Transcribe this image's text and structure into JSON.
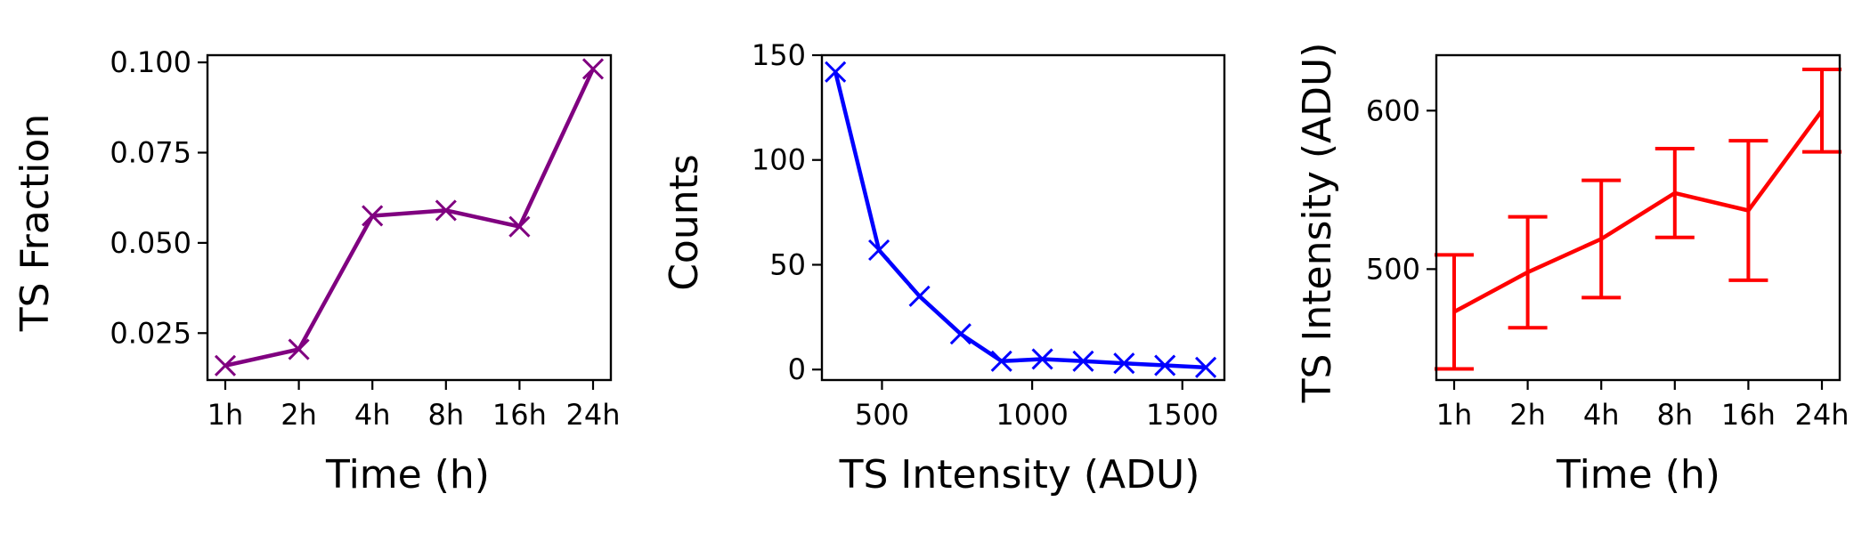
{
  "chart_data": [
    {
      "type": "line",
      "categories": [
        "1h",
        "2h",
        "4h",
        "8h",
        "16h",
        "24h"
      ],
      "xlabel": "Time (h)",
      "ylabel": "TS Fraction",
      "ylim": [
        0.012,
        0.102
      ],
      "yticks": [
        0.025,
        0.05,
        0.075,
        0.1
      ],
      "ytick_labels": [
        "0.025",
        "0.050",
        "0.075",
        "0.100"
      ],
      "grid": false,
      "marker": "x",
      "color": "#800080",
      "series": [
        {
          "values": [
            0.016,
            0.0205,
            0.0575,
            0.059,
            0.0545,
            0.0982
          ]
        }
      ]
    },
    {
      "type": "line",
      "xlabel": "TS Intensity (ADU)",
      "ylabel": "Counts",
      "xlim": [
        300,
        1640
      ],
      "ylim": [
        -5,
        150
      ],
      "xticks": [
        500,
        1000,
        1500
      ],
      "xtick_labels": [
        "500",
        "1000",
        "1500"
      ],
      "yticks": [
        0,
        50,
        100,
        150
      ],
      "ytick_labels": [
        "0",
        "50",
        "100",
        "150"
      ],
      "grid": false,
      "marker": "x",
      "color": "#0000ff",
      "series": [
        {
          "x": [
            345,
            490,
            625,
            762,
            898,
            1034,
            1170,
            1306,
            1442,
            1578
          ],
          "y": [
            142,
            57,
            35,
            17,
            4,
            5,
            4,
            3,
            2,
            1
          ]
        }
      ]
    },
    {
      "type": "line",
      "categories": [
        "1h",
        "2h",
        "4h",
        "8h",
        "16h",
        "24h"
      ],
      "xlabel": "Time (h)",
      "ylabel": "TS Intensity (ADU)",
      "ylim": [
        430,
        635
      ],
      "yticks": [
        500,
        600
      ],
      "ytick_labels": [
        "500",
        "600"
      ],
      "grid": false,
      "error_bars": true,
      "color": "#ff0000",
      "series": [
        {
          "values": [
            473,
            498,
            519,
            548,
            537,
            600
          ],
          "errors": [
            36,
            35,
            37,
            28,
            44,
            26
          ]
        }
      ]
    }
  ]
}
